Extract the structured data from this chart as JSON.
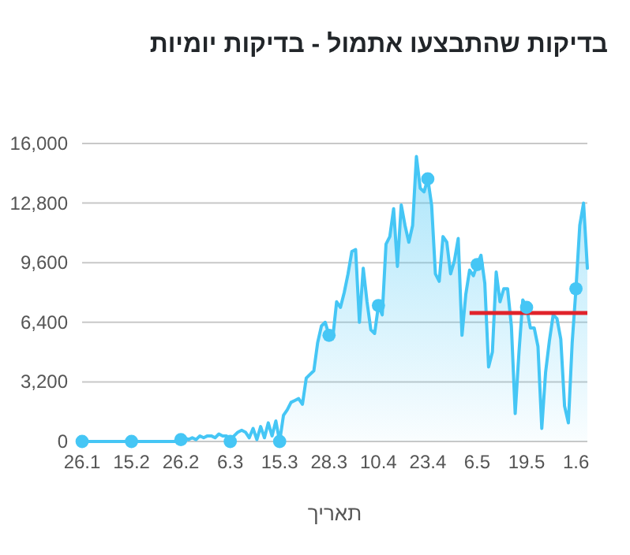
{
  "chart_data": {
    "type": "area",
    "title": "בדיקות שהתבצעו אתמול - בדיקות יומיות",
    "xlabel": "תאריך",
    "categories": [
      "26.1",
      null,
      null,
      null,
      null,
      null,
      null,
      null,
      null,
      null,
      null,
      null,
      null,
      "15.2",
      null,
      null,
      null,
      null,
      null,
      null,
      null,
      null,
      null,
      null,
      null,
      null,
      "26.2",
      null,
      null,
      null,
      null,
      null,
      null,
      null,
      null,
      null,
      null,
      null,
      null,
      "6.3",
      null,
      null,
      null,
      null,
      null,
      null,
      null,
      null,
      null,
      null,
      null,
      null,
      "15.3",
      null,
      null,
      null,
      null,
      null,
      null,
      null,
      null,
      null,
      null,
      null,
      null,
      "28.3",
      null,
      null,
      null,
      null,
      null,
      null,
      null,
      null,
      null,
      null,
      null,
      null,
      "10.4",
      null,
      null,
      null,
      null,
      null,
      null,
      null,
      null,
      null,
      null,
      null,
      null,
      "23.4",
      null,
      null,
      null,
      null,
      null,
      null,
      null,
      null,
      null,
      null,
      null,
      null,
      "6.5",
      null,
      null,
      null,
      null,
      null,
      null,
      null,
      null,
      null,
      null,
      null,
      null,
      "19.5",
      null,
      null,
      null,
      null,
      null,
      null,
      null,
      null,
      null,
      null,
      null,
      null,
      "1.6",
      null,
      null,
      null
    ],
    "series": [
      {
        "color": "#45c6f5",
        "values": [
          0,
          0,
          0,
          0,
          0,
          0,
          0,
          0,
          0,
          0,
          0,
          0,
          0,
          0,
          0,
          0,
          0,
          0,
          0,
          0,
          0,
          0,
          0,
          0,
          0,
          0,
          100,
          200,
          100,
          200,
          100,
          300,
          200,
          300,
          300,
          200,
          400,
          300,
          300,
          0,
          300,
          500,
          600,
          500,
          200,
          700,
          100,
          800,
          200,
          1000,
          300,
          1100,
          0,
          1400,
          1700,
          2100,
          2200,
          2300,
          2000,
          3400,
          3600,
          3800,
          5300,
          6200,
          6400,
          5700,
          5600,
          7500,
          7200,
          8000,
          9000,
          10200,
          10300,
          6400,
          9300,
          7500,
          6000,
          5800,
          7300,
          6800,
          10600,
          11000,
          12500,
          9400,
          12700,
          11600,
          10700,
          11600,
          15300,
          13600,
          13400,
          14100,
          12700,
          9000,
          8600,
          11000,
          10700,
          9000,
          9700,
          10900,
          5700,
          7900,
          9200,
          8900,
          9500,
          10000,
          8500,
          4000,
          4800,
          9100,
          7500,
          8200,
          8200,
          6200,
          1500,
          4800,
          7600,
          7200,
          6100,
          6100,
          5100,
          700,
          3700,
          5400,
          6800,
          6600,
          5500,
          1900,
          1000,
          5300,
          8200,
          11600,
          12800,
          9300
        ]
      },
      {
        "type": "line",
        "color": "#e0232b",
        "values": [
          null,
          null,
          null,
          null,
          null,
          null,
          null,
          null,
          null,
          null,
          null,
          null,
          null,
          null,
          null,
          null,
          null,
          null,
          null,
          null,
          null,
          null,
          null,
          null,
          null,
          null,
          null,
          null,
          null,
          null,
          null,
          null,
          null,
          null,
          null,
          null,
          null,
          null,
          null,
          null,
          null,
          null,
          null,
          null,
          null,
          null,
          null,
          null,
          null,
          null,
          null,
          null,
          null,
          null,
          null,
          null,
          null,
          null,
          null,
          null,
          null,
          null,
          null,
          null,
          null,
          null,
          null,
          null,
          null,
          null,
          null,
          null,
          null,
          null,
          null,
          null,
          null,
          null,
          null,
          null,
          null,
          null,
          null,
          null,
          null,
          null,
          null,
          null,
          null,
          null,
          null,
          null,
          null,
          null,
          null,
          null,
          null,
          null,
          null,
          null,
          null,
          null,
          6900,
          6900,
          6900,
          6900,
          6900,
          6900,
          6900,
          6900,
          6900,
          6900,
          6900,
          6900,
          6900,
          6900,
          6900,
          6900,
          6900,
          6900,
          6900,
          6900,
          6900,
          6900,
          6900,
          6900,
          6900,
          6900,
          6900,
          6900,
          6900,
          6900,
          6900,
          6900
        ]
      },
      {
        "type": "scatter",
        "color": "#45c6f5",
        "marker": "circle",
        "x": [
          "26.1",
          "15.2",
          "26.2",
          "6.3",
          "15.3",
          "28.3",
          "10.4",
          "23.4",
          "6.5",
          "19.5",
          "1.6"
        ],
        "values": [
          0,
          0,
          100,
          0,
          0,
          5700,
          7300,
          14100,
          9500,
          7200,
          8200
        ]
      }
    ],
    "ylim": [
      0,
      16000
    ],
    "yticks": [
      0,
      {
        "value": 3200,
        "label": "3,200"
      },
      {
        "value": 6400,
        "label": "6,400"
      },
      {
        "value": 9600,
        "label": "9,600"
      },
      {
        "value": 12800,
        "label": "12,800"
      },
      {
        "value": 16000,
        "label": "16,000"
      }
    ],
    "grid": "y"
  }
}
